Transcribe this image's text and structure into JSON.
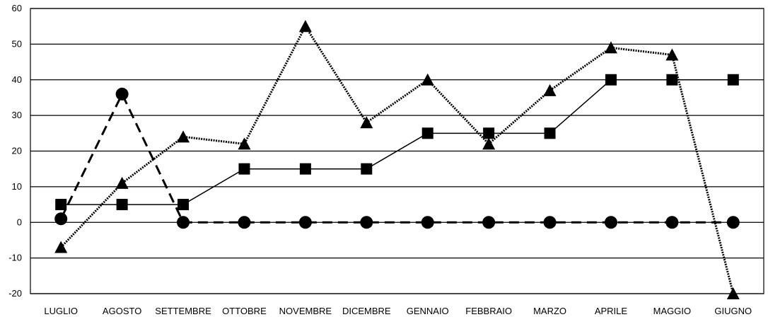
{
  "chart_data": {
    "type": "line",
    "title": "",
    "xlabel": "",
    "ylabel": "",
    "categories": [
      "LUGLIO",
      "AGOSTO",
      "SETTEMBRE",
      "OTTOBRE",
      "NOVEMBRE",
      "DICEMBRE",
      "GENNAIO",
      "FEBBRAIO",
      "MARZO",
      "APRILE",
      "MAGGIO",
      "GIUGNO"
    ],
    "ylim": [
      -20,
      60
    ],
    "yticks": [
      -20,
      -10,
      0,
      10,
      20,
      30,
      40,
      50,
      60
    ],
    "grid": true,
    "legend": "none",
    "series": [
      {
        "marker": "square",
        "line_style": "solid",
        "color": "#000000",
        "values": [
          5,
          5,
          5,
          15,
          15,
          15,
          25,
          25,
          25,
          40,
          40,
          40
        ]
      },
      {
        "marker": "triangle",
        "line_style": "dotted",
        "color": "#000000",
        "values": [
          -7,
          11,
          24,
          22,
          55,
          28,
          40,
          22,
          37,
          49,
          47,
          -20
        ]
      },
      {
        "marker": "circle",
        "line_style": "dashed",
        "color": "#000000",
        "values": [
          1,
          36,
          0,
          0,
          0,
          0,
          0,
          0,
          0,
          0,
          0,
          0
        ]
      }
    ]
  }
}
